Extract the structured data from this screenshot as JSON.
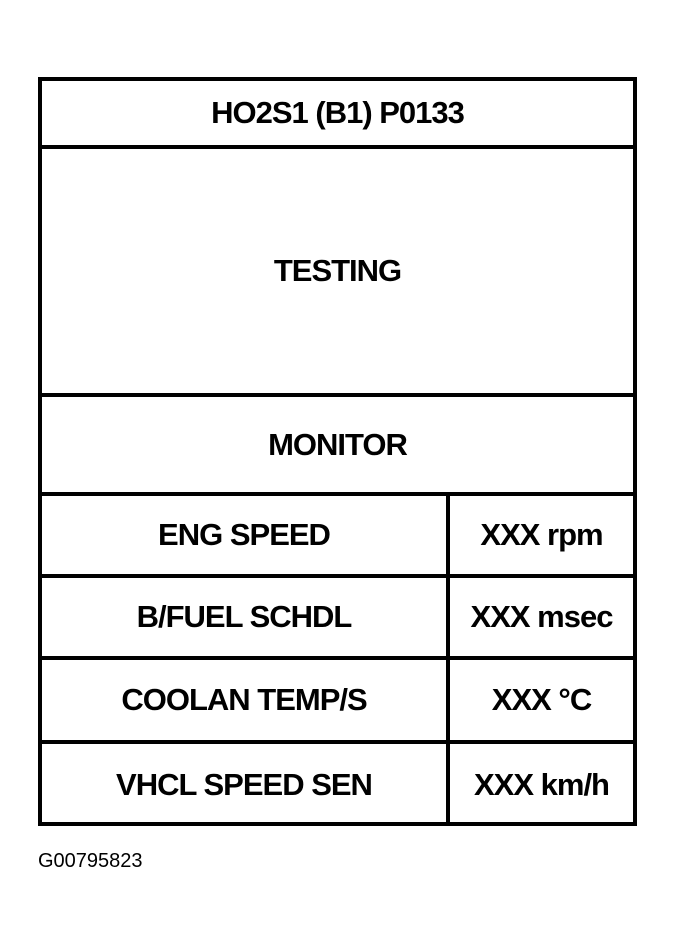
{
  "title": "HO2S1 (B1) P0133",
  "status": "TESTING",
  "section": "MONITOR",
  "rows": [
    {
      "label": "ENG SPEED",
      "value": "XXX rpm"
    },
    {
      "label": "B/FUEL SCHDL",
      "value": "XXX msec"
    },
    {
      "label": "COOLAN TEMP/S",
      "value": "XXX °C"
    },
    {
      "label": "VHCL SPEED SEN",
      "value": "XXX km/h"
    }
  ],
  "caption": "G00795823"
}
